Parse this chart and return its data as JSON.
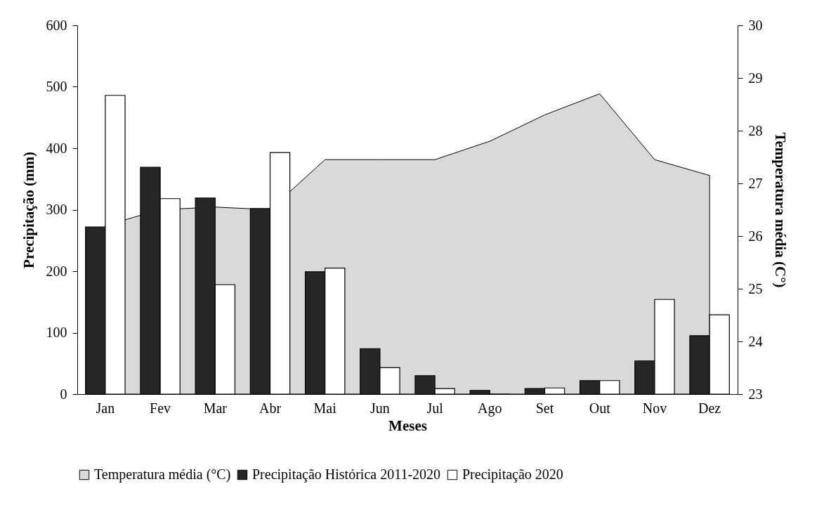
{
  "chart_data": {
    "type": "bar",
    "xlabel": "Meses",
    "ylabel": "Precipitação (mm)",
    "y2label": "Temperatura média (C°)",
    "categories": [
      "Jan",
      "Fev",
      "Mar",
      "Abr",
      "Mai",
      "Jun",
      "Jul",
      "Ago",
      "Set",
      "Out",
      "Nov",
      "Dez"
    ],
    "series": [
      {
        "name": "Temperatura média (°C)",
        "type": "area",
        "axis": "y2",
        "color": "#d9d9d9",
        "values": [
          26.2,
          26.5,
          26.55,
          26.5,
          27.45,
          27.45,
          27.45,
          27.8,
          28.3,
          28.7,
          27.45,
          27.15
        ]
      },
      {
        "name": "Precipitação Histórica 2011-2020",
        "color": "#262626",
        "values": [
          272,
          369,
          319,
          302,
          199,
          74,
          30,
          6,
          9,
          22,
          54,
          95
        ]
      },
      {
        "name": "Precipitação 2020",
        "color": "#ffffff",
        "values": [
          486,
          318,
          178,
          393,
          205,
          43,
          9,
          0,
          10,
          22,
          154,
          129
        ]
      }
    ],
    "ylim": [
      0,
      600
    ],
    "yticks": [
      0,
      100,
      200,
      300,
      400,
      500,
      600
    ],
    "y2lim": [
      23,
      30
    ],
    "y2ticks": [
      23,
      24,
      25,
      26,
      27,
      28,
      29,
      30
    ],
    "legend": "bottom",
    "grid": false
  }
}
